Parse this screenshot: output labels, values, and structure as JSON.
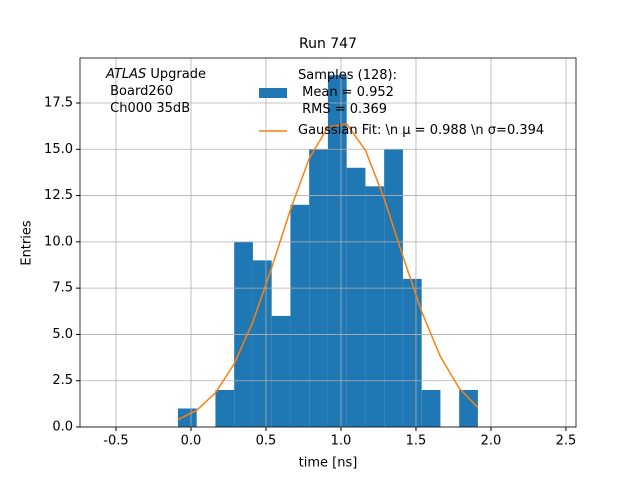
{
  "chart_data": {
    "type": "histogram",
    "title": "Run 747",
    "xlabel": "time [ns]",
    "ylabel": "Entries",
    "annotation_italic": "ATLAS",
    "annotation": " Upgrade\n Board260\n Ch000 35dB",
    "bins": [
      -0.087,
      0.038,
      0.163,
      0.288,
      0.413,
      0.538,
      0.663,
      0.788,
      0.913,
      1.038,
      1.163,
      1.288,
      1.413,
      1.538,
      1.663,
      1.788,
      1.913
    ],
    "series": [
      {
        "name": "Samples (128):\n Mean = 0.952\n RMS = 0.369",
        "color": "#1f77b4",
        "values": [
          1,
          0,
          2,
          10,
          9,
          6,
          12,
          15,
          19,
          14,
          13,
          15,
          8,
          2,
          0,
          2
        ]
      },
      {
        "name": "Gaussian Fit: \\n μ = 0.988 \\n σ=0.394",
        "color": "#ff7f0e",
        "type": "line",
        "x": [
          -0.087,
          0.038,
          0.163,
          0.288,
          0.413,
          0.538,
          0.663,
          0.788,
          0.913,
          1.038,
          1.163,
          1.288,
          1.413,
          1.538,
          1.663,
          1.788,
          1.913
        ],
        "values": [
          0.4,
          0.9,
          1.84,
          3.41,
          5.69,
          8.6,
          11.74,
          14.5,
          16.2,
          16.37,
          14.95,
          12.34,
          9.22,
          6.23,
          3.8,
          2.1,
          1.05
        ]
      }
    ],
    "xlim": [
      -0.74,
      2.567
    ],
    "ylim": [
      0,
      19.93
    ],
    "xticks": [
      -0.5,
      {
        "value": 0,
        "label": "0.0"
      },
      0.5,
      {
        "value": 1,
        "label": "1.0"
      },
      1.5,
      {
        "value": 2,
        "label": "2.0"
      },
      2.5
    ],
    "yticks": [
      {
        "value": 0,
        "label": "0.0"
      },
      2.5,
      {
        "value": 5,
        "label": "5.0"
      },
      7.5,
      {
        "value": 10,
        "label": "10.0"
      },
      12.5,
      {
        "value": 15,
        "label": "15.0"
      },
      17.5
    ],
    "grid": true,
    "legend": "upper center"
  }
}
